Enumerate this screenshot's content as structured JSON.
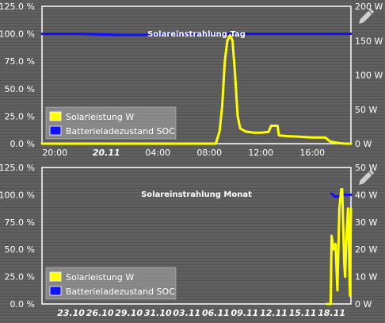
{
  "chart_data": [
    {
      "type": "line",
      "title": "Solareinstrahlung Tag",
      "left_ticks": [
        "125.0 %",
        "100.0 %",
        "75.0 %",
        "50.0 %",
        "25.0 %",
        "0.0 %"
      ],
      "right_ticks": [
        "200 W",
        "150 W",
        "100 W",
        "50 W",
        "0 W"
      ],
      "x_ticks": [
        {
          "label": "20:00",
          "x": 20,
          "bold": false
        },
        {
          "label": "20.11",
          "x": 24,
          "bold": true
        },
        {
          "label": "04:00",
          "x": 28,
          "bold": false
        },
        {
          "label": "08:00",
          "x": 32,
          "bold": false
        },
        {
          "label": "12:00",
          "x": 36,
          "bold": false
        },
        {
          "label": "16:00",
          "x": 40,
          "bold": false
        }
      ],
      "xlim": [
        19,
        43
      ],
      "ylim_left": [
        0,
        125
      ],
      "ylim_right": [
        0,
        200
      ],
      "legend": {
        "placement": "bottom-left",
        "entries": [
          "Solarleistung W",
          "Batterieladezustand SOC"
        ]
      },
      "series": [
        {
          "name": "Solarleistung W",
          "color": "#ffff00",
          "axis": "right",
          "x": [
            19,
            30,
            32.5,
            32.8,
            33,
            33.2,
            33.4,
            33.6,
            33.8,
            34,
            34.2,
            34.4,
            34.6,
            34.8,
            35,
            35.5,
            36,
            36.6,
            36.8,
            37.3,
            37.4,
            38,
            39,
            40,
            41,
            41.4,
            42,
            42.5,
            43
          ],
          "y": [
            0,
            0,
            0,
            18,
            55,
            120,
            150,
            158,
            150,
            100,
            40,
            22,
            20,
            18,
            17,
            16,
            16,
            17,
            26,
            26,
            12,
            11,
            10,
            9,
            9,
            3,
            1,
            0,
            0
          ]
        },
        {
          "name": "Batterieladezustand SOC",
          "color": "#1010ff",
          "axis": "left",
          "x": [
            19,
            22,
            25,
            27,
            29,
            31,
            33,
            35,
            37,
            39,
            41,
            43
          ],
          "y": [
            100,
            100,
            99,
            99,
            100,
            100,
            100,
            100,
            100,
            100,
            100,
            100
          ]
        }
      ]
    },
    {
      "type": "line",
      "title": "Solareinstrahlung Monat",
      "left_ticks": [
        "125.0 %",
        "100.0 %",
        "75.0 %",
        "50.0 %",
        "25.0 %",
        "0.0 %"
      ],
      "right_ticks": [
        "50 W",
        "40 W",
        "30 W",
        "20 W",
        "10 W",
        "0 W"
      ],
      "x_ticks": [
        {
          "label": "23.10",
          "x": 23,
          "bold": true
        },
        {
          "label": "26.10",
          "x": 26,
          "bold": true
        },
        {
          "label": "29.10",
          "x": 29,
          "bold": true
        },
        {
          "label": "31.10",
          "x": 32,
          "bold": true
        },
        {
          "label": "03.11",
          "x": 35,
          "bold": true
        },
        {
          "label": "06.11",
          "x": 38,
          "bold": true
        },
        {
          "label": "09.11",
          "x": 41,
          "bold": true
        },
        {
          "label": "12.11",
          "x": 44,
          "bold": true
        },
        {
          "label": "15.11",
          "x": 47,
          "bold": true
        },
        {
          "label": "18.11",
          "x": 50,
          "bold": true
        }
      ],
      "xlim": [
        20,
        52
      ],
      "ylim_left": [
        0,
        125
      ],
      "ylim_right": [
        0,
        50
      ],
      "legend": {
        "placement": "bottom-left",
        "entries": [
          "Solarleistung W",
          "Batterieladezustand SOC"
        ]
      },
      "series": [
        {
          "name": "Solarleistung W",
          "color": "#ffff00",
          "axis": "right",
          "x": [
            49.5,
            49.9,
            50.0,
            50.2,
            50.4,
            50.6,
            50.8,
            51.0,
            51.1,
            51.3,
            51.4,
            51.5,
            51.7,
            51.9,
            52.0
          ],
          "y": [
            0,
            0,
            25,
            20,
            22,
            5,
            35,
            42,
            42,
            15,
            10,
            22,
            35,
            3,
            35
          ]
        },
        {
          "name": "Batterieladezustand SOC",
          "color": "#1010ff",
          "axis": "left",
          "x": [
            50.0,
            50.4,
            50.8,
            51.2,
            52.0
          ],
          "y": [
            101,
            98,
            99,
            100,
            100
          ]
        }
      ]
    }
  ]
}
